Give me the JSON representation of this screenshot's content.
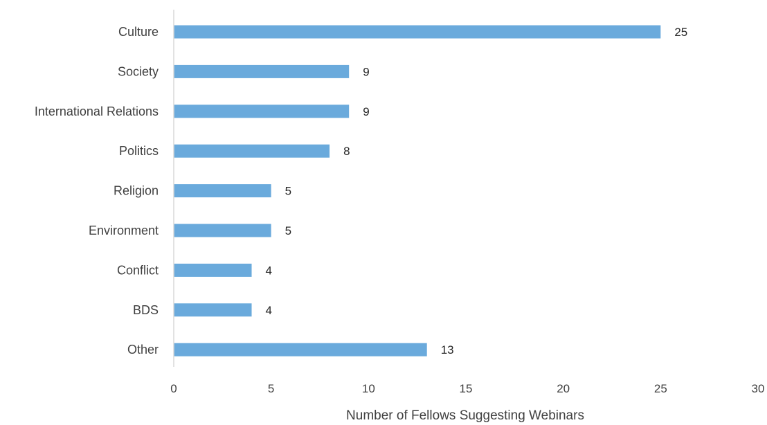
{
  "chart_data": {
    "type": "bar",
    "orientation": "horizontal",
    "categories": [
      "Culture",
      "Society",
      "International Relations",
      "Politics",
      "Religion",
      "Environment",
      "Conflict",
      "BDS",
      "Other"
    ],
    "values": [
      25,
      9,
      9,
      8,
      5,
      5,
      4,
      4,
      13
    ],
    "xlabel": "Number of Fellows Suggesting Webinars",
    "ylabel": "",
    "xlim": [
      0,
      30
    ],
    "xticks": [
      0,
      5,
      10,
      15,
      20,
      25,
      30
    ],
    "bar_color": "#6AAADC",
    "grid": false,
    "legend": "none",
    "data_labels": true
  }
}
